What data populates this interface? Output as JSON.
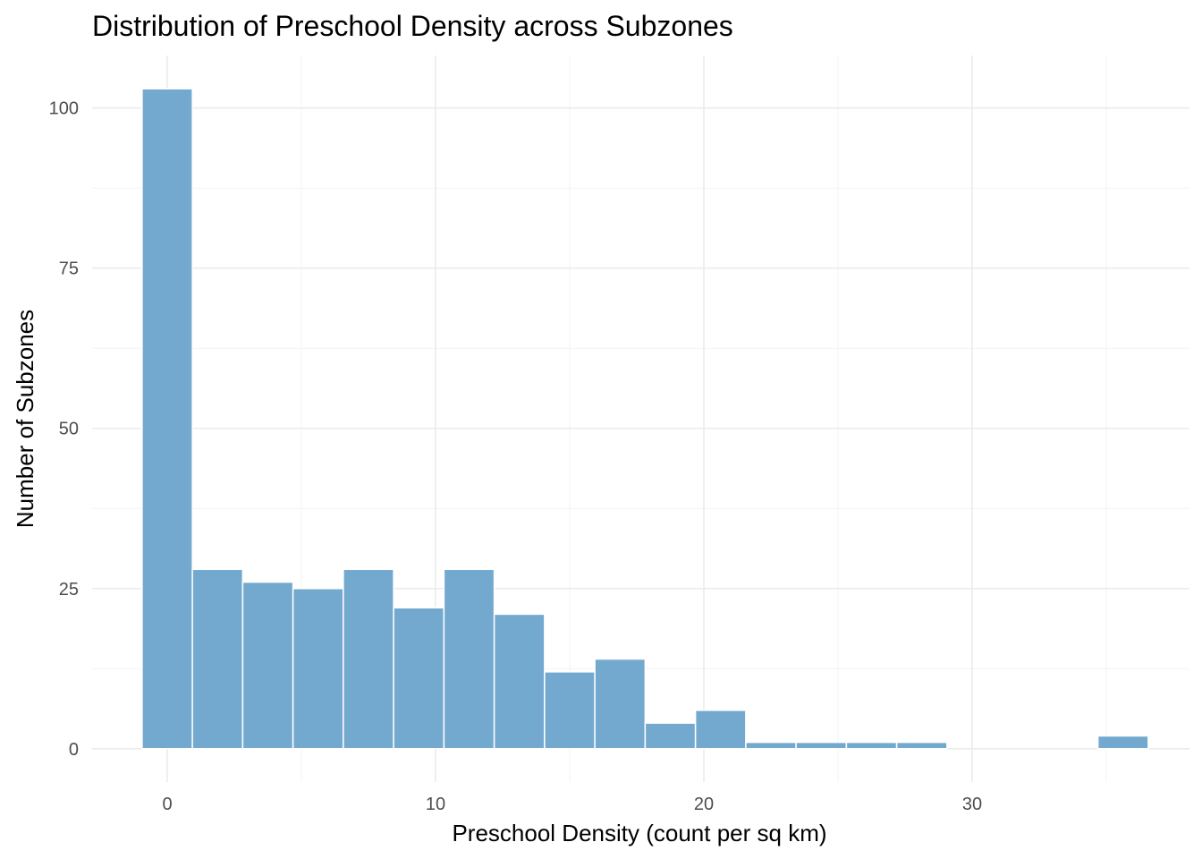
{
  "chart_data": {
    "type": "histogram",
    "title": "Distribution of Preschool Density across Subzones",
    "xlabel": "Preschool Density (count per sq km)",
    "ylabel": "Number of Subzones",
    "bar_color": "#74a9cf",
    "bin_width": 1.875,
    "bin_centers": [
      0,
      1.875,
      3.75,
      5.625,
      7.5,
      9.375,
      11.25,
      13.125,
      15,
      16.875,
      18.75,
      20.625,
      22.5,
      24.375,
      26.25,
      28.125,
      30,
      31.875,
      33.75,
      35.625
    ],
    "counts": [
      103,
      28,
      26,
      25,
      28,
      22,
      28,
      21,
      12,
      14,
      4,
      6,
      1,
      1,
      1,
      1,
      0,
      0,
      0,
      2
    ],
    "xlim": [
      -2.8,
      38.1
    ],
    "ylim": [
      -5.2,
      108.2
    ],
    "x_ticks": [
      0,
      10,
      20,
      30
    ],
    "x_tick_labels": [
      "0",
      "10",
      "20",
      "30"
    ],
    "y_ticks": [
      0,
      25,
      50,
      75,
      100
    ],
    "y_tick_labels": [
      "0",
      "25",
      "50",
      "75",
      "100"
    ],
    "grid": true,
    "legend": "none"
  }
}
